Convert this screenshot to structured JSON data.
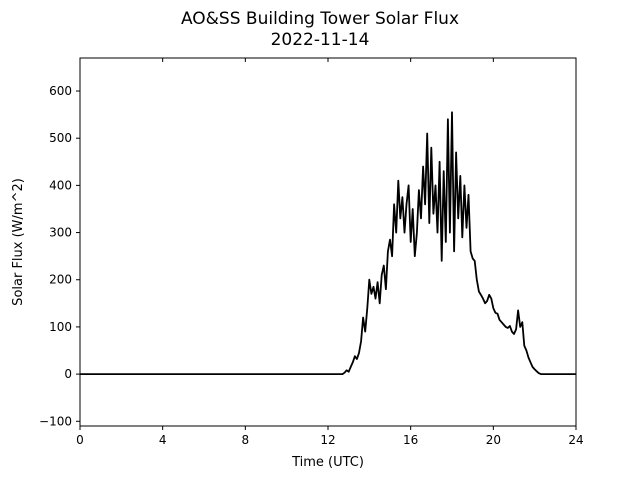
{
  "chart_data": {
    "type": "line",
    "title": "AO&SS Building Tower Solar Flux",
    "subtitle": "2022-11-14",
    "xlabel": "Time (UTC)",
    "ylabel": "Solar Flux (W/m^2)",
    "xlim": [
      0,
      24
    ],
    "ylim": [
      -110,
      670
    ],
    "xticks": [
      0,
      4,
      8,
      12,
      16,
      20,
      24
    ],
    "xtick_labels": [
      "0",
      "4",
      "8",
      "12",
      "16",
      "20",
      "24"
    ],
    "yticks": [
      -100,
      0,
      100,
      200,
      300,
      400,
      500,
      600
    ],
    "ytick_labels": [
      "−100",
      "0",
      "100",
      "200",
      "300",
      "400",
      "500",
      "600"
    ],
    "grid": false,
    "line_color": "#000000",
    "series": [
      {
        "x": [
          0,
          12.7,
          12.8,
          12.9,
          13.0,
          13.1,
          13.2,
          13.3,
          13.4,
          13.5,
          13.6,
          13.7,
          13.8,
          13.9,
          14.0,
          14.1,
          14.2,
          14.3,
          14.4,
          14.5,
          14.6,
          14.7,
          14.8,
          14.9,
          15.0,
          15.1,
          15.2,
          15.3,
          15.4,
          15.5,
          15.6,
          15.7,
          15.8,
          15.9,
          16.0,
          16.1,
          16.2,
          16.3,
          16.4,
          16.5,
          16.6,
          16.7,
          16.8,
          16.9,
          17.0,
          17.1,
          17.2,
          17.3,
          17.4,
          17.5,
          17.6,
          17.7,
          17.8,
          17.9,
          18.0,
          18.1,
          18.2,
          18.3,
          18.4,
          18.5,
          18.6,
          18.7,
          18.8,
          18.9,
          19.0,
          19.1,
          19.2,
          19.3,
          19.4,
          19.5,
          19.6,
          19.7,
          19.8,
          19.9,
          20.0,
          20.1,
          20.2,
          20.3,
          20.4,
          20.5,
          20.6,
          20.7,
          20.8,
          20.9,
          21.0,
          21.1,
          21.2,
          21.3,
          21.4,
          21.5,
          21.6,
          21.7,
          21.8,
          21.9,
          22.0,
          22.1,
          22.2,
          22.3,
          22.4,
          22.5,
          22.6,
          22.7,
          24
        ],
        "y": [
          0,
          0,
          3,
          8,
          5,
          15,
          25,
          38,
          32,
          45,
          70,
          120,
          90,
          140,
          200,
          170,
          185,
          160,
          195,
          150,
          210,
          230,
          180,
          260,
          285,
          250,
          360,
          300,
          410,
          330,
          375,
          300,
          360,
          400,
          280,
          350,
          250,
          300,
          390,
          330,
          440,
          360,
          510,
          320,
          480,
          340,
          400,
          300,
          450,
          240,
          430,
          280,
          540,
          300,
          555,
          260,
          470,
          330,
          420,
          290,
          400,
          310,
          380,
          260,
          245,
          240,
          200,
          175,
          168,
          160,
          150,
          155,
          168,
          160,
          140,
          130,
          128,
          115,
          110,
          105,
          100,
          98,
          102,
          90,
          85,
          95,
          135,
          100,
          110,
          60,
          50,
          35,
          25,
          15,
          10,
          6,
          2,
          0,
          0,
          0,
          0,
          0,
          0
        ]
      }
    ]
  }
}
